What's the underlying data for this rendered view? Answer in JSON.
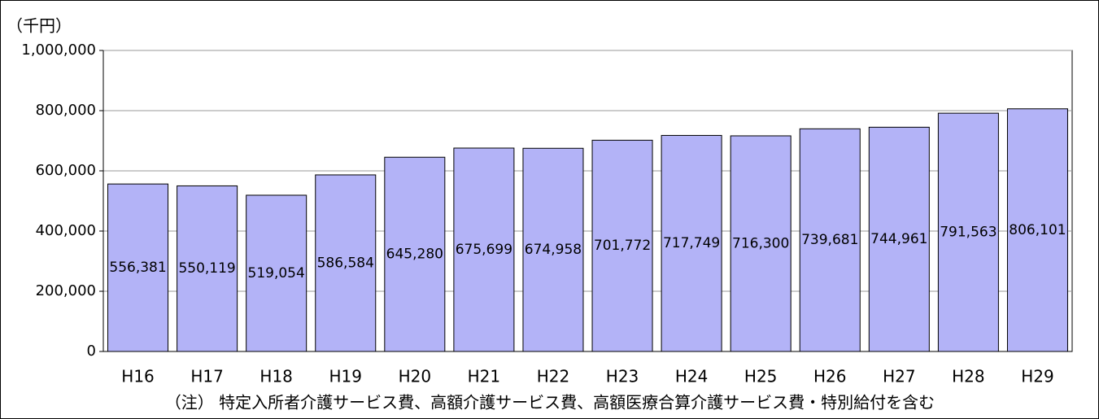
{
  "chart_data": {
    "type": "bar",
    "y_unit_label": "（千円）",
    "note": "（注） 特定入所者介護サービス費、高額介護サービス費、高額医療合算介護サービス費・特別給付を含む",
    "categories": [
      "H16",
      "H17",
      "H18",
      "H19",
      "H20",
      "H21",
      "H22",
      "H23",
      "H24",
      "H25",
      "H26",
      "H27",
      "H28",
      "H29"
    ],
    "values": [
      556381,
      550119,
      519054,
      586584,
      645280,
      675699,
      674958,
      701772,
      717749,
      716300,
      739681,
      744961,
      791563,
      806101
    ],
    "value_labels": [
      "556,381",
      "550,119",
      "519,054",
      "586,584",
      "645,280",
      "675,699",
      "674,958",
      "701,772",
      "717,749",
      "716,300",
      "739,681",
      "744,961",
      "791,563",
      "806,101"
    ],
    "color": "#b3b3f7",
    "ylim": [
      0,
      1000000
    ],
    "yticks": [
      0,
      {
        "value": 200000,
        "label": "200,000"
      },
      {
        "value": 400000,
        "label": "400,000"
      },
      {
        "value": 600000,
        "label": "600,000"
      },
      {
        "value": 800000,
        "label": "800,000"
      },
      {
        "value": 1000000,
        "label": "1,000,000"
      }
    ],
    "grid": true
  }
}
